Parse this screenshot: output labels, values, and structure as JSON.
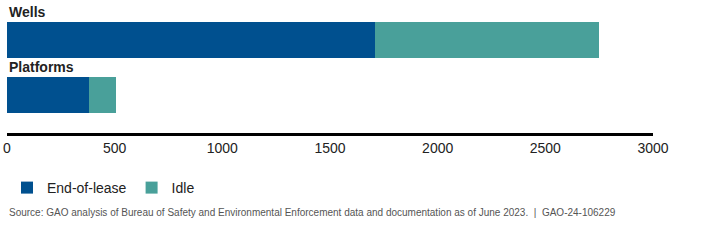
{
  "chart_data": {
    "type": "bar",
    "orientation": "horizontal",
    "stacked": true,
    "categories": [
      "Wells",
      "Platforms"
    ],
    "series": [
      {
        "name": "End-of-lease",
        "color": "#00508f",
        "values": [
          1710,
          380
        ]
      },
      {
        "name": "Idle",
        "color": "#49a09a",
        "values": [
          1040,
          125
        ]
      }
    ],
    "xlim": [
      0,
      3000
    ],
    "xticks": [
      0,
      500,
      1000,
      1500,
      2000,
      2500,
      3000
    ],
    "grid": false,
    "legend": "bottom",
    "tick_labels": "x",
    "annotations": [
      "Source: GAO analysis of Bureau of Safety and Environmental Enforcement data and documentation as of June 2023.  |  GAO-24-106229"
    ]
  }
}
